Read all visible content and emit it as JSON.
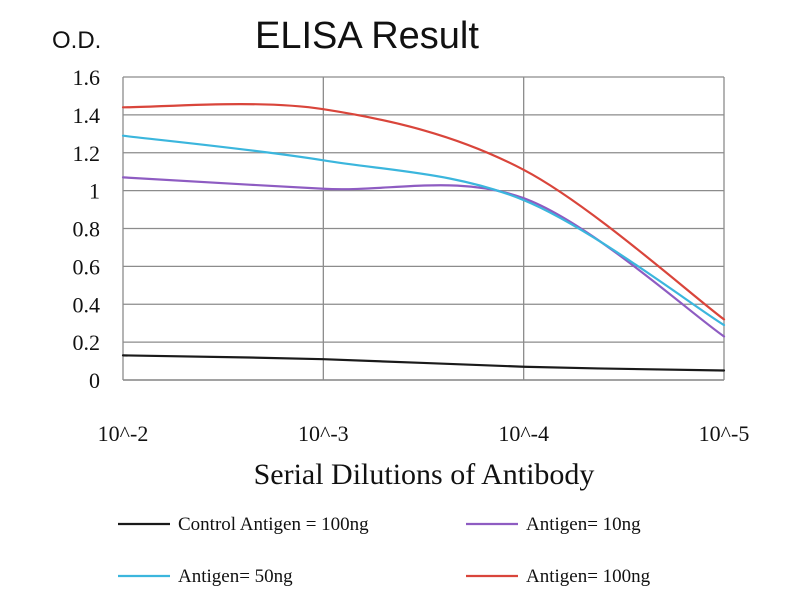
{
  "chart_data": {
    "type": "line",
    "title": "ELISA Result",
    "ylabel": "O.D.",
    "xlabel": "Serial Dilutions of Antibody",
    "x": [
      "10^-2",
      "10^-3",
      "10^-4",
      "10^-5"
    ],
    "ylim": [
      0,
      1.6
    ],
    "yticks": [
      "0",
      "0.2",
      "0.4",
      "0.6",
      "0.8",
      "1",
      "1.2",
      "1.4",
      "1.6"
    ],
    "grid": true,
    "legend_position": "bottom",
    "series": [
      {
        "name": "Control Antigen = 100ng",
        "color": "#1a1a1a",
        "values": [
          0.13,
          0.11,
          0.07,
          0.05
        ]
      },
      {
        "name": "Antigen= 10ng",
        "color": "#8e5cc2",
        "values": [
          1.07,
          1.01,
          0.96,
          0.23
        ]
      },
      {
        "name": "Antigen= 50ng",
        "color": "#3bb6dd",
        "values": [
          1.29,
          1.16,
          0.95,
          0.29
        ]
      },
      {
        "name": "Antigen= 100ng",
        "color": "#d9453b",
        "values": [
          1.44,
          1.43,
          1.11,
          0.32
        ]
      }
    ]
  }
}
